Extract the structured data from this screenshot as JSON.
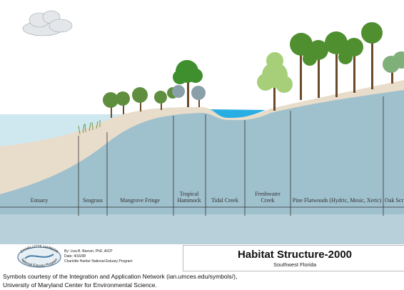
{
  "zones": [
    {
      "lines": [
        "Estuary"
      ]
    },
    {
      "lines": [
        "Seagrass"
      ]
    },
    {
      "lines": [
        "Mangrove Fringe"
      ]
    },
    {
      "lines": [
        "Tropical",
        "Hammock"
      ]
    },
    {
      "lines": [
        "Tidal Creek"
      ]
    },
    {
      "lines": [
        "Freshwater",
        "Creek"
      ]
    },
    {
      "lines": [
        "Pine Flatwoods (Hydric, Mesic, Xeric)"
      ]
    },
    {
      "lines": [
        "Oak Scr"
      ]
    }
  ],
  "logo": {
    "top": "CHARLOTTE HARBOR",
    "bottom": "National Estuary Program"
  },
  "credits": [
    "By: Lisa B. Beever, PhD, AICP",
    "Date: 4/16/08",
    "Charlotte Harbor National Estuary Program"
  ],
  "title_box": {
    "title": "Habitat Structure-2000",
    "subtitle": "Southwest Florida"
  },
  "footer": [
    "Symbols courtesy of the Integration and Application Network (ian.umces.edu/symbols/),",
    "University of Maryland Center for Environmental Science."
  ]
}
